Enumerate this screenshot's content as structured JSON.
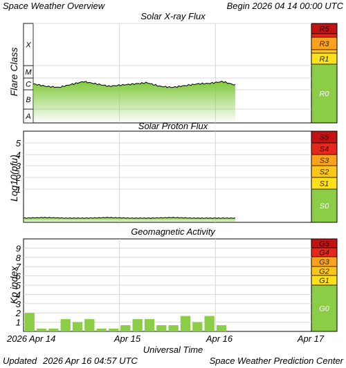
{
  "header": {
    "title": "Space Weather Overview",
    "begin": "Begin 2026 04 14 00:00 UTC"
  },
  "footer": {
    "updated_label": "Updated",
    "updated": "2026 Apr 16 04:57 UTC",
    "center": "Space Weather Prediction Center"
  },
  "colors": {
    "panel_bg": "#ffffff",
    "grid": "#d8d8d8",
    "green": "#7fc93a",
    "bar": "#8ccd47",
    "scale_green": "#8ccd47",
    "scale_yellow": "#ffe01a",
    "scale_orange": "#ffa21a",
    "scale_red": "#e6281c",
    "scale_darkred": "#c41111"
  },
  "chart_data": [
    {
      "type": "area",
      "title": "Solar X-ray Flux",
      "ylabel": "Flare Class",
      "y_ticks": [
        "A",
        "B",
        "C",
        "M",
        "X"
      ],
      "x_range": [
        "2026-04-14 00:00",
        "2026-04-17 00:00"
      ],
      "data_end": "2026-04-16 04:57",
      "series": [
        {
          "values": [
            3.5,
            3.3,
            3.2,
            3.45,
            3.7,
            3.5,
            3.3,
            3.4,
            3.5,
            3.6,
            3.3,
            3.2,
            3.35,
            3.5,
            3.55,
            3.7,
            3.4
          ]
        }
      ],
      "scale": {
        "labels": [
          "R5",
          "R4",
          "R3",
          "R2",
          "R1",
          "R0"
        ],
        "colors": [
          "#c41111",
          "#e6281c",
          "#ffa21a",
          "#ffc61a",
          "#ffe01a",
          "#8ccd47"
        ]
      }
    },
    {
      "type": "area",
      "title": "Solar Proton Flux",
      "ylabel": "Log10(pfu)",
      "y_ticks": [
        "1",
        "2",
        "3",
        "4",
        "5"
      ],
      "x_range": [
        "2026-04-14 00:00",
        "2026-04-17 00:00"
      ],
      "data_end": "2026-04-16 04:57",
      "series": [
        {
          "values": [
            -1.5,
            -1.45,
            -1.5,
            -1.5,
            -1.45,
            -1.5,
            -1.5,
            -1.45,
            -1.5,
            -1.5,
            -1.5
          ]
        }
      ],
      "scale": {
        "labels": [
          "S5",
          "S4",
          "S3",
          "S2",
          "S1",
          "S0"
        ],
        "colors": [
          "#c41111",
          "#e6281c",
          "#ffa21a",
          "#ffc61a",
          "#ffe01a",
          "#8ccd47"
        ]
      }
    },
    {
      "type": "bar",
      "title": "Geomagnetic Activity",
      "ylabel": "Kp index",
      "ylim": [
        0,
        10
      ],
      "y_ticks": [
        "1",
        "2",
        "3",
        "4",
        "5",
        "6",
        "7",
        "8",
        "9"
      ],
      "x_ticks": [
        "2026 Apr 14",
        "Apr 15",
        "Apr 16",
        "Apr 17"
      ],
      "xlabel": "Universal Time",
      "values": [
        2,
        0.3,
        0.3,
        1.33,
        1,
        1.33,
        0.3,
        0.3,
        0.67,
        1.33,
        1.33,
        0.67,
        0.67,
        1.67,
        1,
        1.67,
        0.67
      ],
      "scale": {
        "labels": [
          "G5",
          "G4",
          "G3",
          "G2",
          "G1",
          "G0"
        ],
        "colors": [
          "#c41111",
          "#e6281c",
          "#ffa21a",
          "#ffc61a",
          "#ffe01a",
          "#8ccd47"
        ]
      }
    }
  ]
}
